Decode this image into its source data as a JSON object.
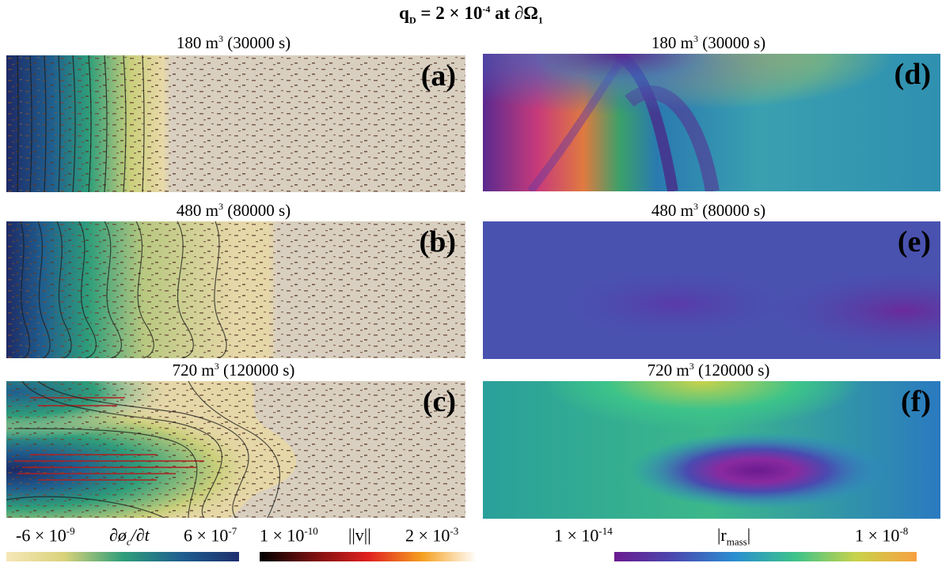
{
  "figure": {
    "title_base": "q",
    "title_sub": "D",
    "title_mid": " = 2 × 10",
    "title_exp": "-4",
    "title_tail": " at ∂Ω",
    "title_sub2": "1"
  },
  "panels": [
    {
      "id": "a",
      "label": "(a)",
      "vol": "180 m",
      "sup": "3",
      "time": " (30000 s)"
    },
    {
      "id": "b",
      "label": "(b)",
      "vol": "480 m",
      "sup": "3",
      "time": " (80000 s)"
    },
    {
      "id": "c",
      "label": "(c)",
      "vol": "720 m",
      "sup": "3",
      "time": " (120000 s)"
    },
    {
      "id": "d",
      "label": "(d)",
      "vol": "180 m",
      "sup": "3",
      "time": " (30000 s)"
    },
    {
      "id": "e",
      "label": "(e)",
      "vol": "480 m",
      "sup": "3",
      "time": " (80000 s)"
    },
    {
      "id": "f",
      "label": "(f)",
      "vol": "720 m",
      "sup": "3",
      "time": " (120000 s)"
    }
  ],
  "colorbars": {
    "porosity": {
      "min_base": "-6 × 10",
      "min_exp": "-9",
      "label_a": "∂ø",
      "label_sub": "c",
      "label_b": "/∂t",
      "max_base": "6 × 10",
      "max_exp": "-7",
      "colors": [
        "#f7e7b8",
        "#d8d27a",
        "#2f9e7a",
        "#1f5f8f",
        "#1e2f6e"
      ]
    },
    "velocity": {
      "min_base": "1 × 10",
      "min_exp": "-10",
      "label": "||v||",
      "max_base": "2 × 10",
      "max_exp": "-3",
      "colors": [
        "#000000",
        "#7a1010",
        "#e02020",
        "#f5a020",
        "#ffffff"
      ]
    },
    "residual": {
      "min_base": "1 × 10",
      "min_exp": "-14",
      "label_a": "|r",
      "label_sub": "mass",
      "label_b": "|",
      "max_base": "1 × 10",
      "max_exp": "-8",
      "colors": [
        "#6a1b8f",
        "#4a4ab0",
        "#2a8fd0",
        "#3cc38a",
        "#c9d24a",
        "#f7a040"
      ]
    }
  }
}
